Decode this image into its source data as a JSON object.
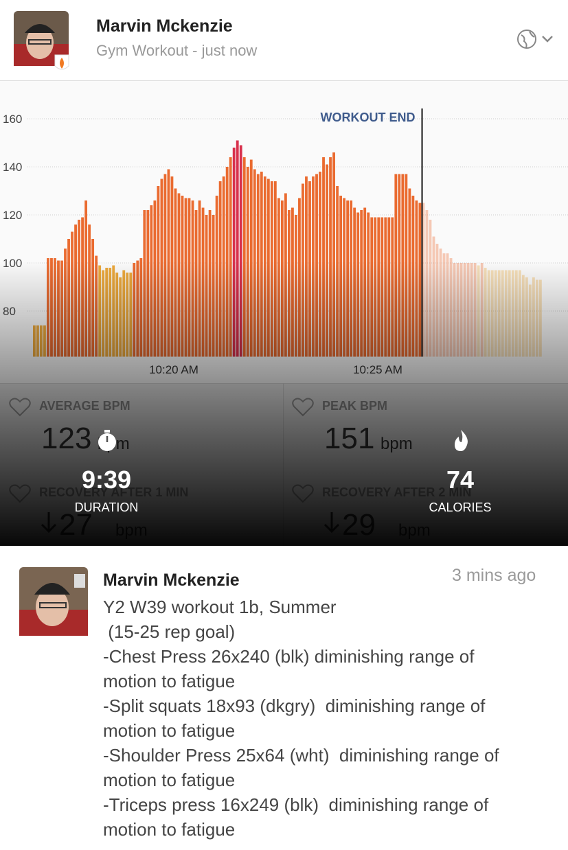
{
  "header": {
    "name": "Marvin Mckenzie",
    "subtitle": "Gym Workout - just now"
  },
  "workout": {
    "chart": {
      "type": "bar",
      "series": [
        {
          "values": [
            74,
            74,
            74,
            74,
            102,
            102,
            102,
            101,
            101,
            106,
            110,
            113,
            116,
            118,
            119,
            126,
            116,
            110,
            103,
            99,
            97,
            98,
            98,
            99,
            96,
            94,
            97,
            96,
            96,
            100,
            101,
            102,
            122,
            122,
            124,
            126,
            132,
            135,
            137,
            139,
            136,
            131,
            129,
            128,
            127,
            127,
            126,
            122,
            126,
            123,
            120,
            122,
            120,
            128,
            134,
            136,
            140,
            144,
            148,
            151,
            149,
            144,
            140,
            143,
            139,
            137,
            138,
            136,
            135,
            134,
            134,
            127,
            126,
            129,
            122,
            123,
            120,
            127,
            133,
            136,
            134,
            136,
            137,
            138,
            144,
            141,
            144,
            146,
            132,
            128,
            127,
            126,
            126,
            123,
            121,
            122,
            123,
            121,
            119,
            119,
            119,
            119,
            119,
            119,
            119,
            137,
            137,
            137,
            137,
            131,
            128,
            126,
            125
          ],
          "opacity": 1
        },
        {
          "values": [
            125,
            122,
            118,
            111,
            108,
            106,
            104,
            104,
            102,
            100,
            100,
            100,
            100,
            100,
            100,
            100,
            99,
            100,
            98,
            97,
            97,
            97,
            97,
            97,
            97,
            97,
            97,
            97,
            97,
            95,
            94,
            91,
            94,
            93,
            93
          ],
          "opacity": 0.35
        }
      ],
      "zones": [
        {
          "from": 0,
          "color": "#eba83c"
        },
        {
          "from": 100,
          "color": "#ea6b30"
        },
        {
          "from": 148,
          "color": "#d8304c"
        }
      ],
      "ylim": [
        61,
        171
      ],
      "yticks": [
        80,
        100,
        120,
        140,
        160
      ],
      "grid": true,
      "xtick_labels": [
        "10:20 AM",
        "10:25 AM"
      ],
      "annotation": "WORKOUT END"
    },
    "stats": [
      {
        "label": "AVERAGE BPM",
        "value": 123,
        "unit": "bpm"
      },
      {
        "label": "PEAK BPM",
        "value": 151,
        "unit": "bpm"
      },
      {
        "label": "RECOVERY AFTER 1 MIN",
        "value": 27,
        "unit": "bpm"
      },
      {
        "label": "RECOVERY AFTER 2 MIN",
        "value": 29,
        "unit": "bpm"
      }
    ],
    "duration": {
      "value": "9:39",
      "label": "DURATION"
    },
    "calories": {
      "value": 74,
      "label": "CALORIES"
    }
  },
  "comment": {
    "name": "Marvin Mckenzie",
    "time": "3 mins ago",
    "lines": [
      "Y2 W39 workout 1b, Summer",
      " (15-25 rep goal)",
      "-Chest Press 26x240 (blk) diminishing range of",
      "motion to fatigue",
      "-Split squats 18x93 (dkgry)  diminishing range of",
      "motion to fatigue",
      "-Shoulder Press 25x64 (wht)  diminishing range of",
      "motion to fatigue",
      "-Triceps press 16x249 (blk)  diminishing range of",
      "motion to fatigue"
    ]
  }
}
